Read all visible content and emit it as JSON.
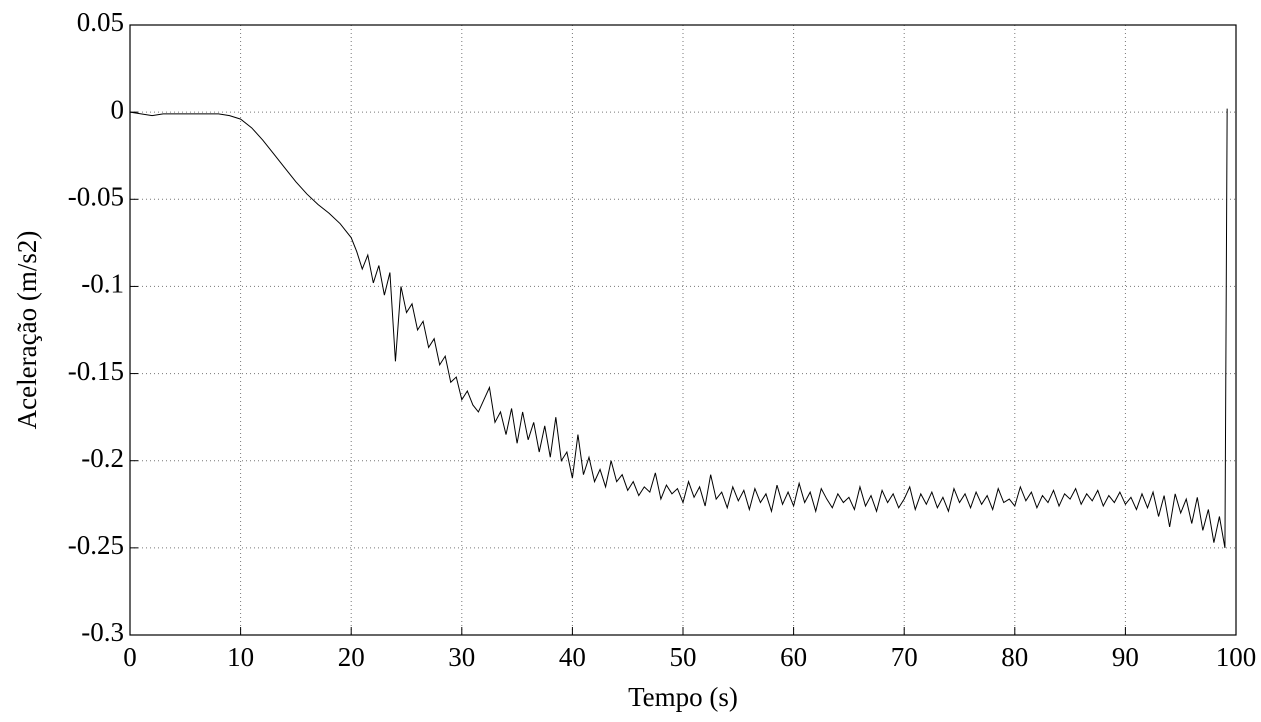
{
  "chart_data": {
    "type": "line",
    "xlabel": "Tempo (s)",
    "ylabel": "Aceleração (m/s2)",
    "xlim": [
      0,
      100
    ],
    "ylim": [
      -0.3,
      0.05
    ],
    "xticks": [
      0,
      10,
      20,
      30,
      40,
      50,
      60,
      70,
      80,
      90,
      100
    ],
    "yticks": [
      0.05,
      0,
      -0.05,
      -0.1,
      -0.15,
      -0.2,
      -0.25,
      -0.3
    ],
    "grid": true,
    "series": [
      {
        "color": "#000000",
        "x": [
          0,
          1,
          2,
          3,
          4,
          5,
          6,
          7,
          8,
          9,
          10,
          11,
          12,
          13,
          14,
          15,
          16,
          17,
          18,
          19,
          20,
          20.5,
          21,
          21.5,
          22,
          22.5,
          23,
          23.5,
          24,
          24.5,
          25,
          25.5,
          26,
          26.5,
          27,
          27.5,
          28,
          28.5,
          29,
          29.5,
          30,
          30.5,
          31,
          31.5,
          32,
          32.5,
          33,
          33.5,
          34,
          34.5,
          35,
          35.5,
          36,
          36.5,
          37,
          37.5,
          38,
          38.5,
          39,
          39.5,
          40,
          40.5,
          41,
          41.5,
          42,
          42.5,
          43,
          43.5,
          44,
          44.5,
          45,
          45.5,
          46,
          46.5,
          47,
          47.5,
          48,
          48.5,
          49,
          49.5,
          50,
          50.5,
          51,
          51.5,
          52,
          52.5,
          53,
          53.5,
          54,
          54.5,
          55,
          55.5,
          56,
          56.5,
          57,
          57.5,
          58,
          58.5,
          59,
          59.5,
          60,
          60.5,
          61,
          61.5,
          62,
          62.5,
          63,
          63.5,
          64,
          64.5,
          65,
          65.5,
          66,
          66.5,
          67,
          67.5,
          68,
          68.5,
          69,
          69.5,
          70,
          70.5,
          71,
          71.5,
          72,
          72.5,
          73,
          73.5,
          74,
          74.5,
          75,
          75.5,
          76,
          76.5,
          77,
          77.5,
          78,
          78.5,
          79,
          79.5,
          80,
          80.5,
          81,
          81.5,
          82,
          82.5,
          83,
          83.5,
          84,
          84.5,
          85,
          85.5,
          86,
          86.5,
          87,
          87.5,
          88,
          88.5,
          89,
          89.5,
          90,
          90.5,
          91,
          91.5,
          92,
          92.5,
          93,
          93.5,
          94,
          94.5,
          95,
          95.5,
          96,
          96.5,
          97,
          97.5,
          98,
          98.5,
          99,
          99.2
        ],
        "values": [
          0,
          -0.001,
          -0.002,
          -0.001,
          -0.001,
          -0.001,
          -0.001,
          -0.001,
          -0.001,
          -0.002,
          -0.004,
          -0.009,
          -0.016,
          -0.024,
          -0.032,
          -0.04,
          -0.047,
          -0.053,
          -0.058,
          -0.064,
          -0.072,
          -0.08,
          -0.09,
          -0.082,
          -0.098,
          -0.088,
          -0.105,
          -0.092,
          -0.143,
          -0.1,
          -0.115,
          -0.11,
          -0.125,
          -0.12,
          -0.135,
          -0.13,
          -0.145,
          -0.14,
          -0.155,
          -0.152,
          -0.165,
          -0.16,
          -0.168,
          -0.172,
          -0.165,
          -0.158,
          -0.178,
          -0.172,
          -0.185,
          -0.17,
          -0.19,
          -0.172,
          -0.188,
          -0.178,
          -0.195,
          -0.18,
          -0.198,
          -0.175,
          -0.2,
          -0.195,
          -0.21,
          -0.185,
          -0.208,
          -0.198,
          -0.212,
          -0.205,
          -0.215,
          -0.2,
          -0.212,
          -0.208,
          -0.217,
          -0.212,
          -0.22,
          -0.215,
          -0.218,
          -0.207,
          -0.222,
          -0.214,
          -0.219,
          -0.216,
          -0.224,
          -0.212,
          -0.221,
          -0.215,
          -0.226,
          -0.208,
          -0.222,
          -0.218,
          -0.227,
          -0.215,
          -0.223,
          -0.217,
          -0.228,
          -0.216,
          -0.224,
          -0.219,
          -0.229,
          -0.214,
          -0.225,
          -0.218,
          -0.226,
          -0.213,
          -0.224,
          -0.218,
          -0.229,
          -0.216,
          -0.222,
          -0.227,
          -0.219,
          -0.224,
          -0.221,
          -0.228,
          -0.215,
          -0.226,
          -0.22,
          -0.229,
          -0.217,
          -0.224,
          -0.219,
          -0.227,
          -0.222,
          -0.215,
          -0.228,
          -0.219,
          -0.225,
          -0.218,
          -0.227,
          -0.221,
          -0.229,
          -0.216,
          -0.224,
          -0.219,
          -0.227,
          -0.218,
          -0.225,
          -0.22,
          -0.228,
          -0.216,
          -0.224,
          -0.222,
          -0.226,
          -0.215,
          -0.223,
          -0.218,
          -0.227,
          -0.22,
          -0.224,
          -0.217,
          -0.226,
          -0.219,
          -0.222,
          -0.216,
          -0.225,
          -0.219,
          -0.223,
          -0.217,
          -0.226,
          -0.22,
          -0.224,
          -0.218,
          -0.225,
          -0.221,
          -0.228,
          -0.219,
          -0.227,
          -0.218,
          -0.232,
          -0.22,
          -0.238,
          -0.219,
          -0.23,
          -0.222,
          -0.236,
          -0.221,
          -0.24,
          -0.228,
          -0.247,
          -0.232,
          -0.25,
          0.002
        ]
      }
    ]
  }
}
